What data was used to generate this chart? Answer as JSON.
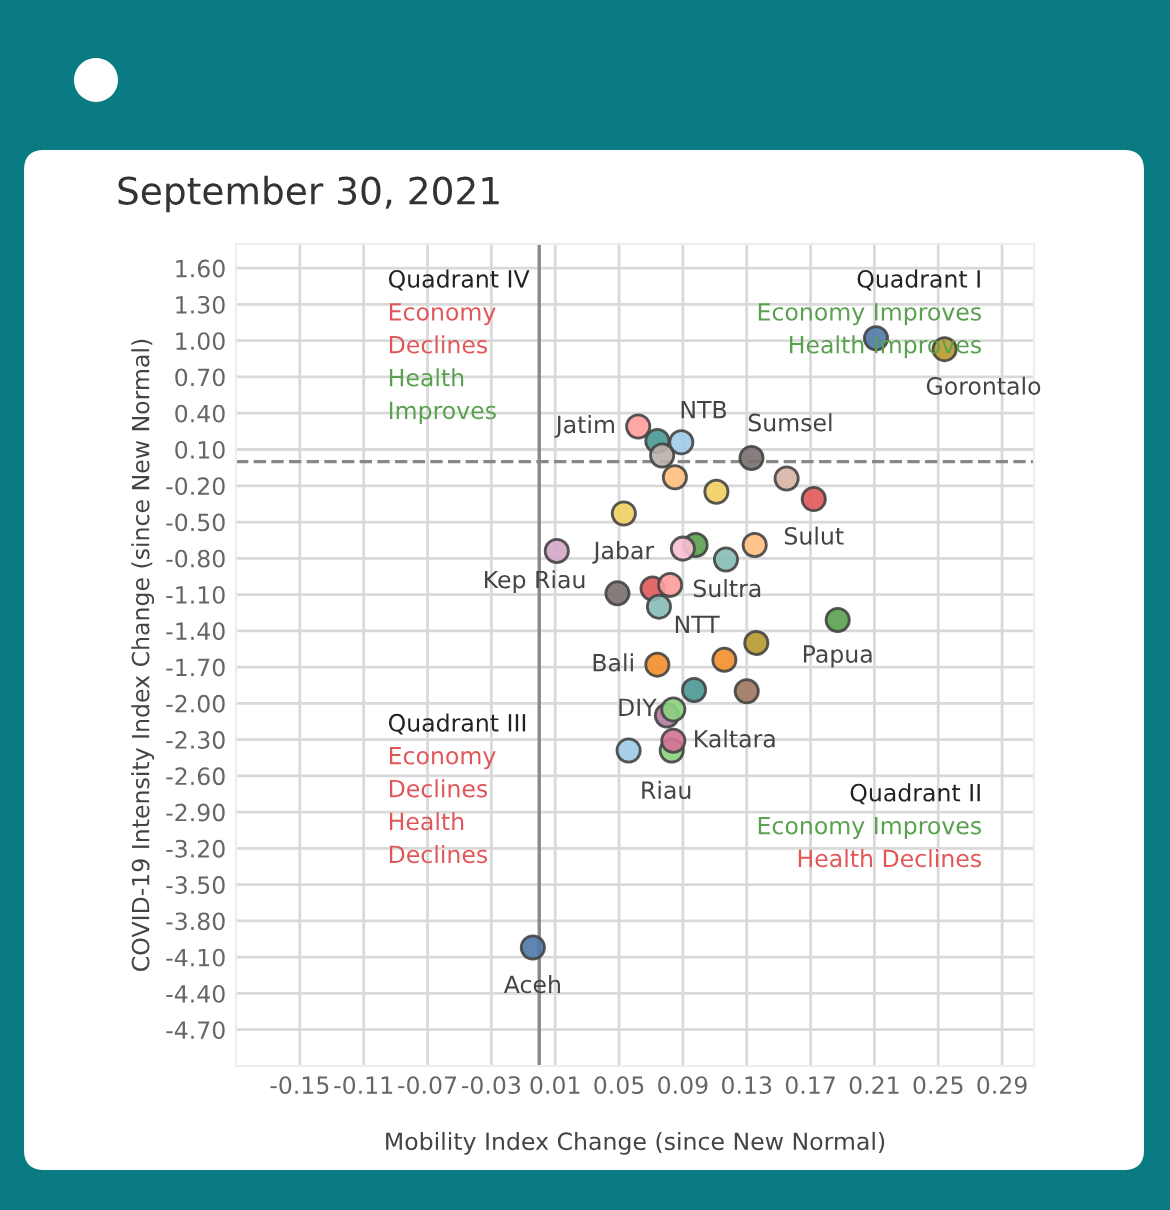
{
  "chart_data": {
    "type": "scatter",
    "title": "September 30, 2021",
    "xlabel": "Mobility Index Change (since New Normal)",
    "ylabel": "COVID-19 Intensity Index Change (since New Normal)",
    "x": [
      0.211,
      0.254,
      0.062,
      0.074,
      0.089,
      0.077,
      0.133,
      0.085,
      0.155,
      0.111,
      0.172,
      0.053,
      0.098,
      0.09,
      0.135,
      0.117,
      0.011,
      0.049,
      0.071,
      0.082,
      0.075,
      0.187,
      0.136,
      0.116,
      0.074,
      0.097,
      0.13,
      0.08,
      0.084,
      0.083,
      0.084,
      0.056,
      -0.004
    ],
    "values": [
      1.02,
      0.93,
      0.29,
      0.17,
      0.16,
      0.05,
      0.03,
      -0.13,
      -0.14,
      -0.25,
      -0.31,
      -0.43,
      -0.69,
      -0.72,
      -0.69,
      -0.81,
      -0.74,
      -1.09,
      -1.05,
      -1.02,
      -1.2,
      -1.31,
      -1.5,
      -1.64,
      -1.68,
      -1.89,
      -1.9,
      -2.1,
      -2.05,
      -2.39,
      -2.31,
      -2.39,
      -4.02
    ],
    "colors": [
      "#4e79a7",
      "#b6992d",
      "#ff9d9a",
      "#499894",
      "#a0cbe8",
      "#bab0ac",
      "#79706e",
      "#ffbe7d",
      "#d7b5a6",
      "#f1ce63",
      "#e15759",
      "#f1ce63",
      "#59a14f",
      "#fabfd2",
      "#ffbe7d",
      "#86bcb6",
      "#d4a6c8",
      "#79706e",
      "#e15759",
      "#ff9d9a",
      "#86bcb6",
      "#59a14f",
      "#b6992d",
      "#f28e2b",
      "#f28e2b",
      "#499894",
      "#9d7660",
      "#b07aa1",
      "#8cd17d",
      "#8cd17d",
      "#d37295",
      "#a0cbe8",
      "#4e79a7"
    ],
    "marker": "circle",
    "xlim": [
      -0.19,
      0.31
    ],
    "ylim": [
      -5.0,
      1.8
    ],
    "xticks": [
      {
        "value": -0.15,
        "label": "-0.15"
      },
      {
        "value": -0.11,
        "label": "-0.11"
      },
      {
        "value": -0.07,
        "label": "-0.07"
      },
      {
        "value": -0.03,
        "label": "-0.03"
      },
      {
        "value": 0.01,
        "label": "0.01"
      },
      {
        "value": 0.05,
        "label": "0.05"
      },
      {
        "value": 0.09,
        "label": "0.09"
      },
      {
        "value": 0.13,
        "label": "0.13"
      },
      {
        "value": 0.17,
        "label": "0.17"
      },
      {
        "value": 0.21,
        "label": "0.21"
      },
      {
        "value": 0.25,
        "label": "0.25"
      },
      {
        "value": 0.29,
        "label": "0.29"
      }
    ],
    "yticks": [
      {
        "value": 1.6,
        "label": "1.60"
      },
      {
        "value": 1.3,
        "label": "1.30"
      },
      {
        "value": 1.0,
        "label": "1.00"
      },
      {
        "value": 0.7,
        "label": "0.70"
      },
      {
        "value": 0.4,
        "label": "0.40"
      },
      {
        "value": 0.1,
        "label": "0.10"
      },
      {
        "value": -0.2,
        "label": "-0.20"
      },
      {
        "value": -0.5,
        "label": "-0.50"
      },
      {
        "value": -0.8,
        "label": "-0.80"
      },
      {
        "value": -1.1,
        "label": "-1.10"
      },
      {
        "value": -1.4,
        "label": "-1.40"
      },
      {
        "value": -1.7,
        "label": "-1.70"
      },
      {
        "value": -2.0,
        "label": "-2.00"
      },
      {
        "value": -2.3,
        "label": "-2.30"
      },
      {
        "value": -2.6,
        "label": "-2.60"
      },
      {
        "value": -2.9,
        "label": "-2.90"
      },
      {
        "value": -3.2,
        "label": "-3.20"
      },
      {
        "value": -3.5,
        "label": "-3.50"
      },
      {
        "value": -3.8,
        "label": "-3.80"
      },
      {
        "value": -4.1,
        "label": "-4.10"
      },
      {
        "value": -4.4,
        "label": "-4.40"
      },
      {
        "value": -4.7,
        "label": "-4.70"
      }
    ],
    "grid": true,
    "ref_lines": [
      {
        "axis": "x",
        "value": 0,
        "color": "#888888",
        "line_style": "solid"
      },
      {
        "axis": "y",
        "value": 0,
        "color": "#888888",
        "line_style": "dashed"
      }
    ],
    "annotations": [
      "Quadrant IV",
      "Economy",
      "Declines",
      "Health",
      "Improves",
      "Quadrant I",
      "Economy Improves",
      "Health Improves",
      "Quadrant III",
      "Economy",
      "Declines",
      "Health",
      "Declines",
      "Quadrant II",
      "Economy Improves",
      "Health Declines",
      {
        "text": "Gorontalo",
        "x": 0.254,
        "y": 0.93
      },
      {
        "text": "Jatim",
        "x": 0.062,
        "y": 0.29
      },
      {
        "text": "NTB",
        "x": 0.089,
        "y": 0.16
      },
      {
        "text": "Sumsel",
        "x": 0.133,
        "y": 0.03
      },
      {
        "text": "Sulut",
        "x": 0.172,
        "y": -0.31
      },
      {
        "text": "Jabar",
        "x": 0.053,
        "y": -0.43
      },
      {
        "text": "Kep Riau",
        "x": 0.011,
        "y": -0.74
      },
      {
        "text": "Sultra",
        "x": 0.082,
        "y": -1.02
      },
      {
        "text": "NTT",
        "x": 0.116,
        "y": -1.64
      },
      {
        "text": "Papua",
        "x": 0.187,
        "y": -1.31
      },
      {
        "text": "Bali",
        "x": 0.074,
        "y": -1.68
      },
      {
        "text": "DIY",
        "x": 0.084,
        "y": -2.05
      },
      {
        "text": "Kaltara",
        "x": 0.084,
        "y": -2.31
      },
      {
        "text": "Riau",
        "x": 0.083,
        "y": -2.39
      },
      {
        "text": "Aceh",
        "x": -0.004,
        "y": -4.02
      }
    ]
  }
}
